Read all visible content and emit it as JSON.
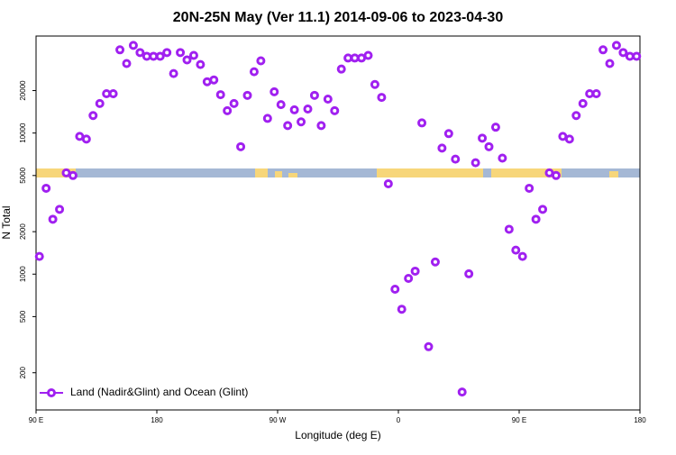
{
  "chart_data": {
    "type": "scatter",
    "title": "20N-25N May (Ver 11.1)   2014-09-06 to 2023-04-30",
    "x_label": "Longitude (deg E)",
    "y_label": "N Total",
    "log_y": true,
    "xlim": [
      90,
      540
    ],
    "ylim": [
      109,
      48700
    ],
    "xticks": [
      {
        "value": 90,
        "label": "90 E"
      },
      180,
      {
        "value": 270,
        "label": "90 W"
      },
      {
        "value": 360,
        "label": "0"
      },
      {
        "value": 450,
        "label": "90 E"
      },
      {
        "value": 540,
        "label": "180"
      }
    ],
    "yticks": [
      200,
      500,
      1000,
      2000,
      5000,
      10000,
      20000
    ],
    "legend": "bottom-left",
    "series": [
      {
        "name": "Land (Nadir&Glint) and Ocean (Glint)",
        "color": "#a020f0",
        "x": [
          92.5,
          97.5,
          102.5,
          107.5,
          112.5,
          117.5,
          122.5,
          127.5,
          132.5,
          137.5,
          142.5,
          147.5,
          152.5,
          157.5,
          162.5,
          167.5,
          172.5,
          177.5,
          182.5,
          187.5,
          192.5,
          197.5,
          202.5,
          207.5,
          212.5,
          217.5,
          222.5,
          227.5,
          232.5,
          237.5,
          242.5,
          247.5,
          252.5,
          257.5,
          262.5,
          267.5,
          272.5,
          277.5,
          282.5,
          287.5,
          292.5,
          297.5,
          302.5,
          307.5,
          312.5,
          317.5,
          322.5,
          327.5,
          332.5,
          337.5,
          342.5,
          347.5,
          352.5,
          357.5,
          362.5,
          367.5,
          372.5,
          377.5,
          382.5,
          387.5,
          392.5,
          397.5,
          402.5,
          407.5,
          412.5,
          417.5,
          422.5,
          427.5,
          432.5,
          437.5,
          442.5,
          447.5,
          452.5,
          457.5,
          462.5,
          467.5,
          472.5,
          477.5,
          482.5,
          487.5,
          492.5,
          497.5,
          502.5,
          507.5,
          512.5,
          517.5,
          522.5,
          527.5,
          532.5,
          537.5
        ],
        "values": [
          1335,
          4060,
          2450,
          2880,
          5220,
          5000,
          9470,
          9060,
          13300,
          16200,
          19000,
          19000,
          38900,
          31100,
          41800,
          37200,
          35000,
          35000,
          35000,
          37200,
          26400,
          37200,
          33000,
          35500,
          30600,
          23100,
          23800,
          18700,
          14400,
          16200,
          8000,
          18500,
          27200,
          32500,
          12700,
          19600,
          15900,
          11300,
          14600,
          12000,
          14800,
          18500,
          11300,
          17400,
          14400,
          28400,
          34000,
          34000,
          34000,
          35500,
          22100,
          17900,
          4370,
          782,
          564,
          933,
          1050,
          11800,
          306,
          1220,
          7820,
          9910,
          6530,
          146,
          1005,
          6160,
          9200,
          8000,
          11000,
          6640,
          2080,
          1480,
          1335,
          4060,
          2450,
          2880,
          5220,
          5000,
          9470,
          9060,
          13300,
          16200,
          19000,
          19000,
          38900,
          31100,
          41800,
          37200,
          35000,
          35000
        ]
      }
    ]
  }
}
